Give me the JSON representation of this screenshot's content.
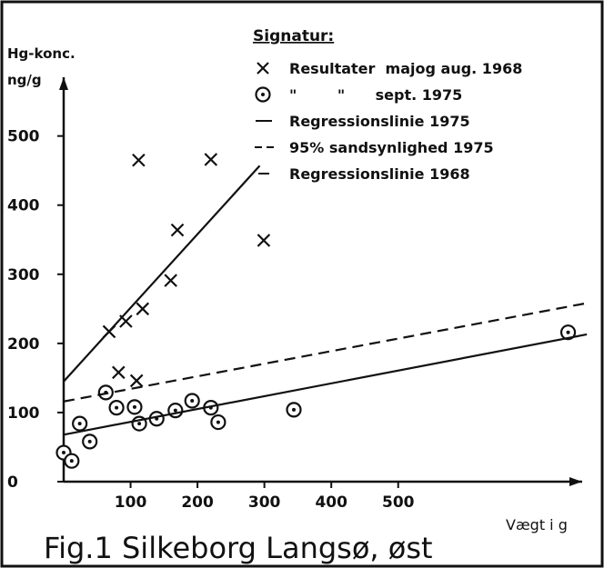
{
  "chart_data": {
    "type": "scatter",
    "title": "Fig.1  Silkeborg Langsø, øst",
    "y_label_1": "Hg-konc.",
    "y_label_2": "ng/g",
    "x_label": "Vægt i g",
    "legend_title": "Signatur:",
    "xlim": [
      0,
      775
    ],
    "ylim": [
      0,
      585
    ],
    "xticks": [
      100,
      200,
      300,
      400,
      500
    ],
    "yticks": [
      0,
      100,
      200,
      300,
      400,
      500
    ],
    "color": "#111111",
    "series": [
      {
        "name": "Resultater  majog aug. 1968",
        "marker": "x",
        "x": [
          112,
          220,
          170,
          160,
          299,
          118,
          93,
          68,
          82,
          109
        ],
        "values": [
          465,
          466,
          364,
          291,
          349,
          250,
          232,
          217,
          158,
          146
        ]
      },
      {
        "name": "\"        \"      sept. 1975",
        "marker": "circle",
        "x": [
          0,
          12,
          24,
          39,
          63,
          79,
          106,
          113,
          139,
          167,
          192,
          220,
          231,
          344,
          754
        ],
        "values": [
          42,
          30,
          84,
          58,
          129,
          107,
          108,
          84,
          91,
          103,
          117,
          107,
          86,
          104,
          216
        ]
      },
      {
        "name": "Regressionslinie 1975",
        "line": "solid",
        "x": [
          0,
          782
        ],
        "values": [
          68,
          213
        ]
      },
      {
        "name": "95% sandsynlighed 1975",
        "line": "dashed",
        "x": [
          0,
          786
        ],
        "values": [
          116,
          259
        ]
      },
      {
        "name": "Regressionslinie 1968",
        "line": "solid",
        "legend_line": "short",
        "x": [
          0,
          293
        ],
        "values": [
          145,
          457
        ]
      }
    ]
  }
}
